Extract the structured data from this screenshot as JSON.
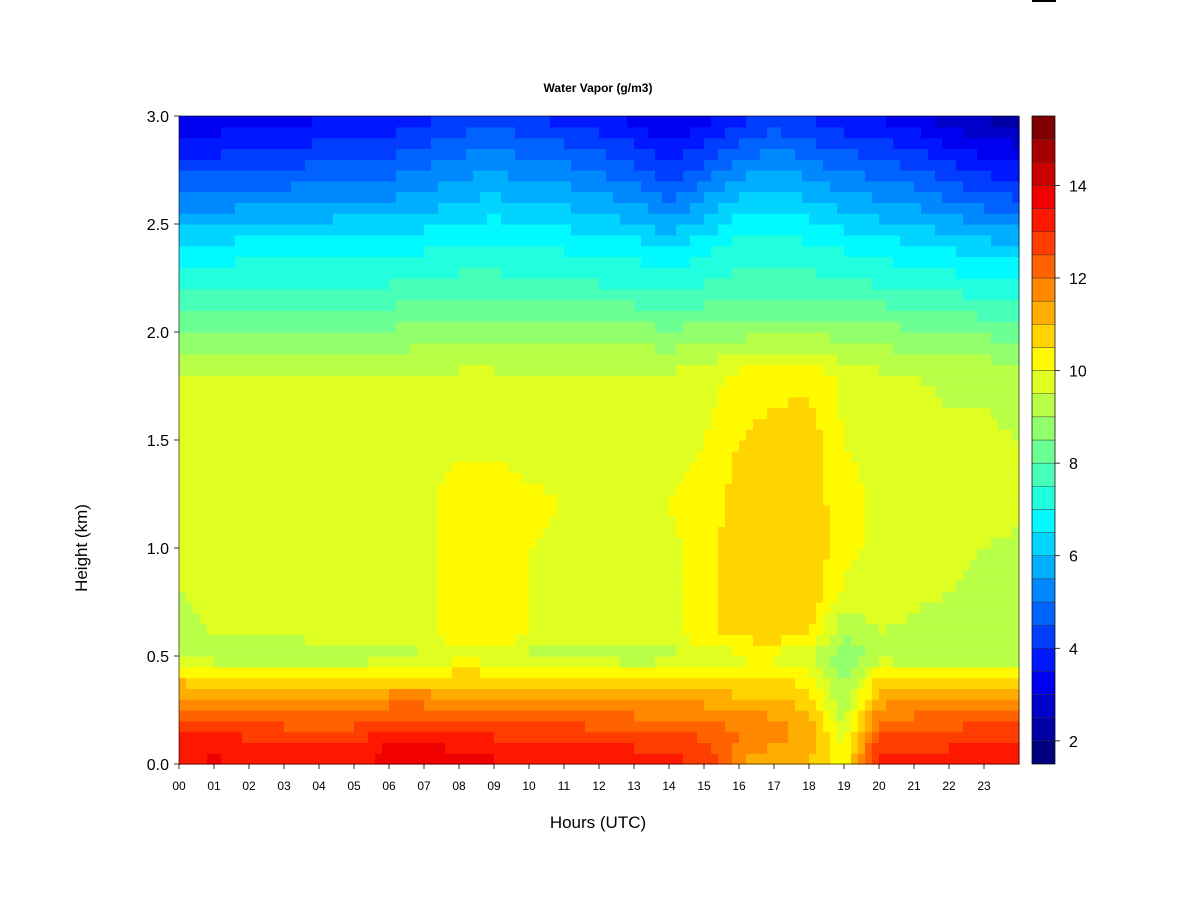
{
  "chart_data": {
    "type": "heatmap",
    "title": "Water Vapor (g/m3)",
    "xlabel": "Hours (UTC)",
    "ylabel": "Height (km)",
    "xlim": [
      0,
      24
    ],
    "ylim": [
      0,
      3
    ],
    "x_ticks": [
      "00",
      "01",
      "02",
      "03",
      "04",
      "05",
      "06",
      "07",
      "08",
      "09",
      "10",
      "11",
      "12",
      "13",
      "14",
      "15",
      "16",
      "17",
      "18",
      "19",
      "20",
      "21",
      "22",
      "23"
    ],
    "y_ticks": [
      "0.0",
      "0.5",
      "1.0",
      "1.5",
      "2.0",
      "2.5",
      "3.0"
    ],
    "colorbar": {
      "min": 1.5,
      "max": 15.5,
      "step": 0.5,
      "ticks": [
        "2",
        "4",
        "6",
        "8",
        "10",
        "12",
        "14"
      ],
      "colors": [
        "#00007f",
        "#0000ff",
        "#007fff",
        "#00ffff",
        "#7fff7f",
        "#ffff00",
        "#ff7f00",
        "#ff0000",
        "#7f0000"
      ]
    },
    "x": [
      0,
      1,
      2,
      3,
      4,
      5,
      6,
      7,
      8,
      9,
      10,
      11,
      12,
      13,
      14,
      15,
      16,
      17,
      18,
      19,
      20,
      21,
      22,
      23,
      24
    ],
    "y": [
      0.0,
      0.1,
      0.2,
      0.3,
      0.4,
      0.5,
      0.6,
      0.8,
      1.0,
      1.2,
      1.5,
      1.8,
      2.0,
      2.2,
      2.4,
      2.6,
      2.8,
      3.0
    ],
    "z": [
      [
        13.5,
        13.6,
        13.4,
        13.5,
        13.4,
        13.3,
        13.8,
        14.1,
        13.7,
        13.6,
        13.5,
        13.6,
        13.3,
        13.3,
        13.2,
        13.0,
        11.5,
        11.0,
        11.0,
        10.2,
        13.2,
        13.2,
        13.3,
        13.4,
        13.4
      ],
      [
        13.2,
        13.3,
        13.1,
        13.1,
        13.0,
        13.0,
        13.5,
        13.6,
        13.3,
        13.2,
        13.1,
        13.1,
        12.9,
        12.9,
        12.7,
        12.6,
        12.0,
        11.6,
        11.3,
        10.0,
        12.8,
        12.8,
        12.9,
        13.0,
        13.1
      ],
      [
        12.6,
        12.6,
        12.5,
        12.3,
        12.3,
        12.3,
        12.6,
        12.6,
        12.5,
        12.4,
        12.4,
        12.4,
        12.3,
        12.2,
        12.2,
        12.1,
        11.8,
        11.6,
        11.3,
        9.4,
        12.0,
        12.2,
        12.3,
        12.4,
        12.6
      ],
      [
        11.7,
        11.6,
        11.5,
        11.5,
        11.5,
        11.5,
        11.8,
        11.8,
        11.6,
        11.5,
        11.5,
        11.5,
        11.5,
        11.4,
        11.3,
        11.3,
        11.1,
        11.0,
        10.7,
        9.0,
        11.3,
        11.4,
        11.4,
        11.5,
        11.6
      ],
      [
        10.8,
        10.7,
        10.6,
        10.5,
        10.5,
        10.6,
        10.6,
        10.7,
        10.8,
        10.7,
        10.6,
        10.6,
        10.6,
        10.5,
        10.5,
        10.6,
        10.6,
        10.6,
        10.3,
        8.8,
        10.5,
        10.5,
        10.5,
        10.6,
        10.6
      ],
      [
        9.2,
        9.1,
        9.0,
        9.0,
        9.0,
        9.1,
        9.2,
        9.4,
        9.8,
        9.7,
        9.3,
        9.2,
        9.2,
        9.1,
        9.2,
        9.7,
        9.8,
        9.8,
        9.5,
        8.6,
        9.2,
        9.1,
        9.0,
        9.0,
        9.0
      ],
      [
        9.4,
        9.5,
        9.5,
        9.6,
        9.7,
        9.7,
        9.8,
        9.9,
        10.2,
        10.4,
        10.0,
        9.8,
        9.8,
        9.7,
        9.8,
        10.4,
        10.7,
        10.8,
        10.5,
        9.0,
        9.5,
        9.4,
        9.3,
        9.2,
        9.2
      ],
      [
        9.5,
        9.6,
        9.6,
        9.6,
        9.7,
        9.8,
        9.8,
        9.8,
        10.3,
        10.5,
        10.0,
        9.9,
        9.9,
        9.8,
        9.9,
        10.2,
        10.8,
        10.9,
        10.9,
        9.9,
        9.7,
        9.6,
        9.5,
        9.4,
        9.3
      ],
      [
        9.5,
        9.6,
        9.6,
        9.7,
        9.7,
        9.8,
        9.8,
        9.8,
        10.3,
        10.4,
        10.0,
        9.9,
        9.9,
        9.9,
        9.9,
        10.2,
        10.9,
        11.0,
        10.9,
        10.2,
        9.8,
        9.7,
        9.6,
        9.5,
        9.4
      ],
      [
        9.7,
        9.8,
        9.8,
        9.8,
        9.8,
        9.8,
        9.8,
        9.9,
        10.2,
        10.3,
        10.1,
        10.0,
        10.0,
        10.0,
        10.0,
        10.2,
        10.7,
        10.9,
        10.8,
        10.2,
        9.9,
        9.8,
        9.7,
        9.7,
        9.6
      ],
      [
        9.6,
        9.7,
        9.7,
        9.7,
        9.7,
        9.7,
        9.7,
        9.8,
        9.9,
        9.9,
        9.8,
        9.8,
        9.8,
        9.8,
        9.8,
        10.0,
        10.5,
        10.7,
        10.8,
        10.0,
        9.8,
        9.7,
        9.6,
        9.6,
        9.5
      ],
      [
        9.5,
        9.5,
        9.5,
        9.5,
        9.5,
        9.5,
        9.5,
        9.6,
        9.6,
        9.6,
        9.6,
        9.6,
        9.6,
        9.6,
        9.6,
        9.7,
        10.2,
        10.3,
        10.4,
        9.8,
        9.6,
        9.5,
        9.4,
        9.4,
        9.3
      ],
      [
        8.5,
        8.5,
        8.6,
        8.6,
        8.6,
        8.6,
        8.6,
        8.7,
        8.8,
        8.8,
        8.7,
        8.7,
        8.7,
        8.7,
        8.6,
        8.7,
        8.8,
        8.9,
        8.9,
        8.8,
        8.7,
        8.6,
        8.5,
        8.4,
        8.3
      ],
      [
        7.5,
        7.5,
        7.6,
        7.6,
        7.6,
        7.6,
        7.6,
        7.7,
        7.8,
        7.8,
        7.7,
        7.7,
        7.6,
        7.6,
        7.4,
        7.6,
        7.8,
        7.8,
        7.8,
        7.7,
        7.6,
        7.5,
        7.4,
        7.3,
        7.2
      ],
      [
        6.6,
        6.6,
        6.7,
        6.7,
        6.7,
        6.8,
        6.8,
        6.9,
        7.0,
        7.1,
        6.9,
        6.9,
        6.8,
        6.7,
        6.4,
        6.8,
        7.2,
        7.3,
        7.1,
        6.9,
        6.7,
        6.6,
        6.4,
        6.2,
        6.1
      ],
      [
        5.2,
        5.2,
        5.4,
        5.4,
        5.5,
        5.6,
        5.6,
        5.8,
        6.0,
        6.2,
        5.9,
        5.9,
        5.7,
        5.5,
        5.0,
        5.6,
        6.2,
        6.4,
        6.1,
        5.8,
        5.6,
        5.4,
        5.1,
        4.8,
        4.6
      ],
      [
        4.1,
        4.1,
        4.3,
        4.3,
        4.4,
        4.5,
        4.6,
        4.8,
        5.1,
        5.3,
        5.0,
        4.9,
        4.7,
        4.4,
        3.9,
        4.4,
        5.0,
        5.3,
        5.0,
        4.7,
        4.5,
        4.3,
        3.9,
        3.6,
        3.4
      ],
      [
        3.1,
        3.1,
        3.3,
        3.3,
        3.4,
        3.5,
        3.6,
        3.8,
        4.1,
        4.3,
        4.0,
        3.8,
        3.6,
        3.3,
        2.9,
        3.3,
        3.8,
        4.1,
        3.9,
        3.6,
        3.4,
        3.1,
        2.7,
        2.4,
        2.2
      ]
    ]
  }
}
